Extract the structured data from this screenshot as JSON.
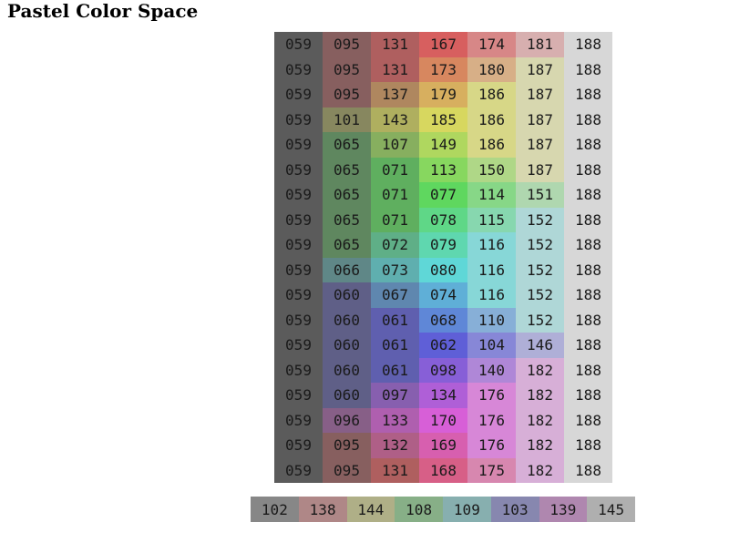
{
  "title": "Pastel Color Space",
  "grid": [
    [
      {
        "v": "059",
        "c": "#5b5b5b"
      },
      {
        "v": "095",
        "c": "#875f5f"
      },
      {
        "v": "131",
        "c": "#af5f5f"
      },
      {
        "v": "167",
        "c": "#d75f5f"
      },
      {
        "v": "174",
        "c": "#d78787"
      },
      {
        "v": "181",
        "c": "#d7afaf"
      },
      {
        "v": "188",
        "c": "#d7d7d7"
      }
    ],
    [
      {
        "v": "059",
        "c": "#5b5b5b"
      },
      {
        "v": "095",
        "c": "#875f5f"
      },
      {
        "v": "131",
        "c": "#af5f5f"
      },
      {
        "v": "173",
        "c": "#d7875f"
      },
      {
        "v": "180",
        "c": "#d7af87"
      },
      {
        "v": "187",
        "c": "#d7d7af"
      },
      {
        "v": "188",
        "c": "#d7d7d7"
      }
    ],
    [
      {
        "v": "059",
        "c": "#5b5b5b"
      },
      {
        "v": "095",
        "c": "#875f5f"
      },
      {
        "v": "137",
        "c": "#af875f"
      },
      {
        "v": "179",
        "c": "#d7af5f"
      },
      {
        "v": "186",
        "c": "#d7d787"
      },
      {
        "v": "187",
        "c": "#d7d7af"
      },
      {
        "v": "188",
        "c": "#d7d7d7"
      }
    ],
    [
      {
        "v": "059",
        "c": "#5b5b5b"
      },
      {
        "v": "101",
        "c": "#87875f"
      },
      {
        "v": "143",
        "c": "#afaf5f"
      },
      {
        "v": "185",
        "c": "#d7d75f"
      },
      {
        "v": "186",
        "c": "#d7d787"
      },
      {
        "v": "187",
        "c": "#d7d7af"
      },
      {
        "v": "188",
        "c": "#d7d7d7"
      }
    ],
    [
      {
        "v": "059",
        "c": "#5b5b5b"
      },
      {
        "v": "065",
        "c": "#5f875f"
      },
      {
        "v": "107",
        "c": "#87af5f"
      },
      {
        "v": "149",
        "c": "#afd75f"
      },
      {
        "v": "186",
        "c": "#d7d787"
      },
      {
        "v": "187",
        "c": "#d7d7af"
      },
      {
        "v": "188",
        "c": "#d7d7d7"
      }
    ],
    [
      {
        "v": "059",
        "c": "#5b5b5b"
      },
      {
        "v": "065",
        "c": "#5f875f"
      },
      {
        "v": "071",
        "c": "#5faf5f"
      },
      {
        "v": "113",
        "c": "#87d75f"
      },
      {
        "v": "150",
        "c": "#afd787"
      },
      {
        "v": "187",
        "c": "#d7d7af"
      },
      {
        "v": "188",
        "c": "#d7d7d7"
      }
    ],
    [
      {
        "v": "059",
        "c": "#5b5b5b"
      },
      {
        "v": "065",
        "c": "#5f875f"
      },
      {
        "v": "071",
        "c": "#5faf5f"
      },
      {
        "v": "077",
        "c": "#5fd75f"
      },
      {
        "v": "114",
        "c": "#87d787"
      },
      {
        "v": "151",
        "c": "#afd7af"
      },
      {
        "v": "188",
        "c": "#d7d7d7"
      }
    ],
    [
      {
        "v": "059",
        "c": "#5b5b5b"
      },
      {
        "v": "065",
        "c": "#5f875f"
      },
      {
        "v": "071",
        "c": "#5faf5f"
      },
      {
        "v": "078",
        "c": "#5fd787"
      },
      {
        "v": "115",
        "c": "#87d7af"
      },
      {
        "v": "152",
        "c": "#afd7d7"
      },
      {
        "v": "188",
        "c": "#d7d7d7"
      }
    ],
    [
      {
        "v": "059",
        "c": "#5b5b5b"
      },
      {
        "v": "065",
        "c": "#5f875f"
      },
      {
        "v": "072",
        "c": "#5faf87"
      },
      {
        "v": "079",
        "c": "#5fd7af"
      },
      {
        "v": "116",
        "c": "#87d7d7"
      },
      {
        "v": "152",
        "c": "#afd7d7"
      },
      {
        "v": "188",
        "c": "#d7d7d7"
      }
    ],
    [
      {
        "v": "059",
        "c": "#5b5b5b"
      },
      {
        "v": "066",
        "c": "#5f8787"
      },
      {
        "v": "073",
        "c": "#5fafaf"
      },
      {
        "v": "080",
        "c": "#5fd7d7"
      },
      {
        "v": "116",
        "c": "#87d7d7"
      },
      {
        "v": "152",
        "c": "#afd7d7"
      },
      {
        "v": "188",
        "c": "#d7d7d7"
      }
    ],
    [
      {
        "v": "059",
        "c": "#5b5b5b"
      },
      {
        "v": "060",
        "c": "#5f5f87"
      },
      {
        "v": "067",
        "c": "#5f87af"
      },
      {
        "v": "074",
        "c": "#5fafd7"
      },
      {
        "v": "116",
        "c": "#87d7d7"
      },
      {
        "v": "152",
        "c": "#afd7d7"
      },
      {
        "v": "188",
        "c": "#d7d7d7"
      }
    ],
    [
      {
        "v": "059",
        "c": "#5b5b5b"
      },
      {
        "v": "060",
        "c": "#5f5f87"
      },
      {
        "v": "061",
        "c": "#5f5faf"
      },
      {
        "v": "068",
        "c": "#5f87d7"
      },
      {
        "v": "110",
        "c": "#87afd7"
      },
      {
        "v": "152",
        "c": "#afd7d7"
      },
      {
        "v": "188",
        "c": "#d7d7d7"
      }
    ],
    [
      {
        "v": "059",
        "c": "#5b5b5b"
      },
      {
        "v": "060",
        "c": "#5f5f87"
      },
      {
        "v": "061",
        "c": "#5f5faf"
      },
      {
        "v": "062",
        "c": "#5f5fd7"
      },
      {
        "v": "104",
        "c": "#8787d7"
      },
      {
        "v": "146",
        "c": "#afafd7"
      },
      {
        "v": "188",
        "c": "#d7d7d7"
      }
    ],
    [
      {
        "v": "059",
        "c": "#5b5b5b"
      },
      {
        "v": "060",
        "c": "#5f5f87"
      },
      {
        "v": "061",
        "c": "#5f5faf"
      },
      {
        "v": "098",
        "c": "#875fd7"
      },
      {
        "v": "140",
        "c": "#af87d7"
      },
      {
        "v": "182",
        "c": "#d7afd7"
      },
      {
        "v": "188",
        "c": "#d7d7d7"
      }
    ],
    [
      {
        "v": "059",
        "c": "#5b5b5b"
      },
      {
        "v": "060",
        "c": "#5f5f87"
      },
      {
        "v": "097",
        "c": "#875faf"
      },
      {
        "v": "134",
        "c": "#af5fd7"
      },
      {
        "v": "176",
        "c": "#d787d7"
      },
      {
        "v": "182",
        "c": "#d7afd7"
      },
      {
        "v": "188",
        "c": "#d7d7d7"
      }
    ],
    [
      {
        "v": "059",
        "c": "#5b5b5b"
      },
      {
        "v": "096",
        "c": "#875f87"
      },
      {
        "v": "133",
        "c": "#af5faf"
      },
      {
        "v": "170",
        "c": "#d75fd7"
      },
      {
        "v": "176",
        "c": "#d787d7"
      },
      {
        "v": "182",
        "c": "#d7afd7"
      },
      {
        "v": "188",
        "c": "#d7d7d7"
      }
    ],
    [
      {
        "v": "059",
        "c": "#5b5b5b"
      },
      {
        "v": "095",
        "c": "#875f5f"
      },
      {
        "v": "132",
        "c": "#af5f87"
      },
      {
        "v": "169",
        "c": "#d75faf"
      },
      {
        "v": "176",
        "c": "#d787d7"
      },
      {
        "v": "182",
        "c": "#d7afd7"
      },
      {
        "v": "188",
        "c": "#d7d7d7"
      }
    ],
    [
      {
        "v": "059",
        "c": "#5b5b5b"
      },
      {
        "v": "095",
        "c": "#875f5f"
      },
      {
        "v": "131",
        "c": "#af5f5f"
      },
      {
        "v": "168",
        "c": "#d75f87"
      },
      {
        "v": "175",
        "c": "#d787af"
      },
      {
        "v": "182",
        "c": "#d7afd7"
      },
      {
        "v": "188",
        "c": "#d7d7d7"
      }
    ]
  ],
  "strip": [
    {
      "v": "102",
      "c": "#878787"
    },
    {
      "v": "138",
      "c": "#af8787"
    },
    {
      "v": "144",
      "c": "#afaf87"
    },
    {
      "v": "108",
      "c": "#87af87"
    },
    {
      "v": "109",
      "c": "#87afaf"
    },
    {
      "v": "103",
      "c": "#8787af"
    },
    {
      "v": "139",
      "c": "#af87af"
    },
    {
      "v": "145",
      "c": "#afafaf"
    }
  ]
}
